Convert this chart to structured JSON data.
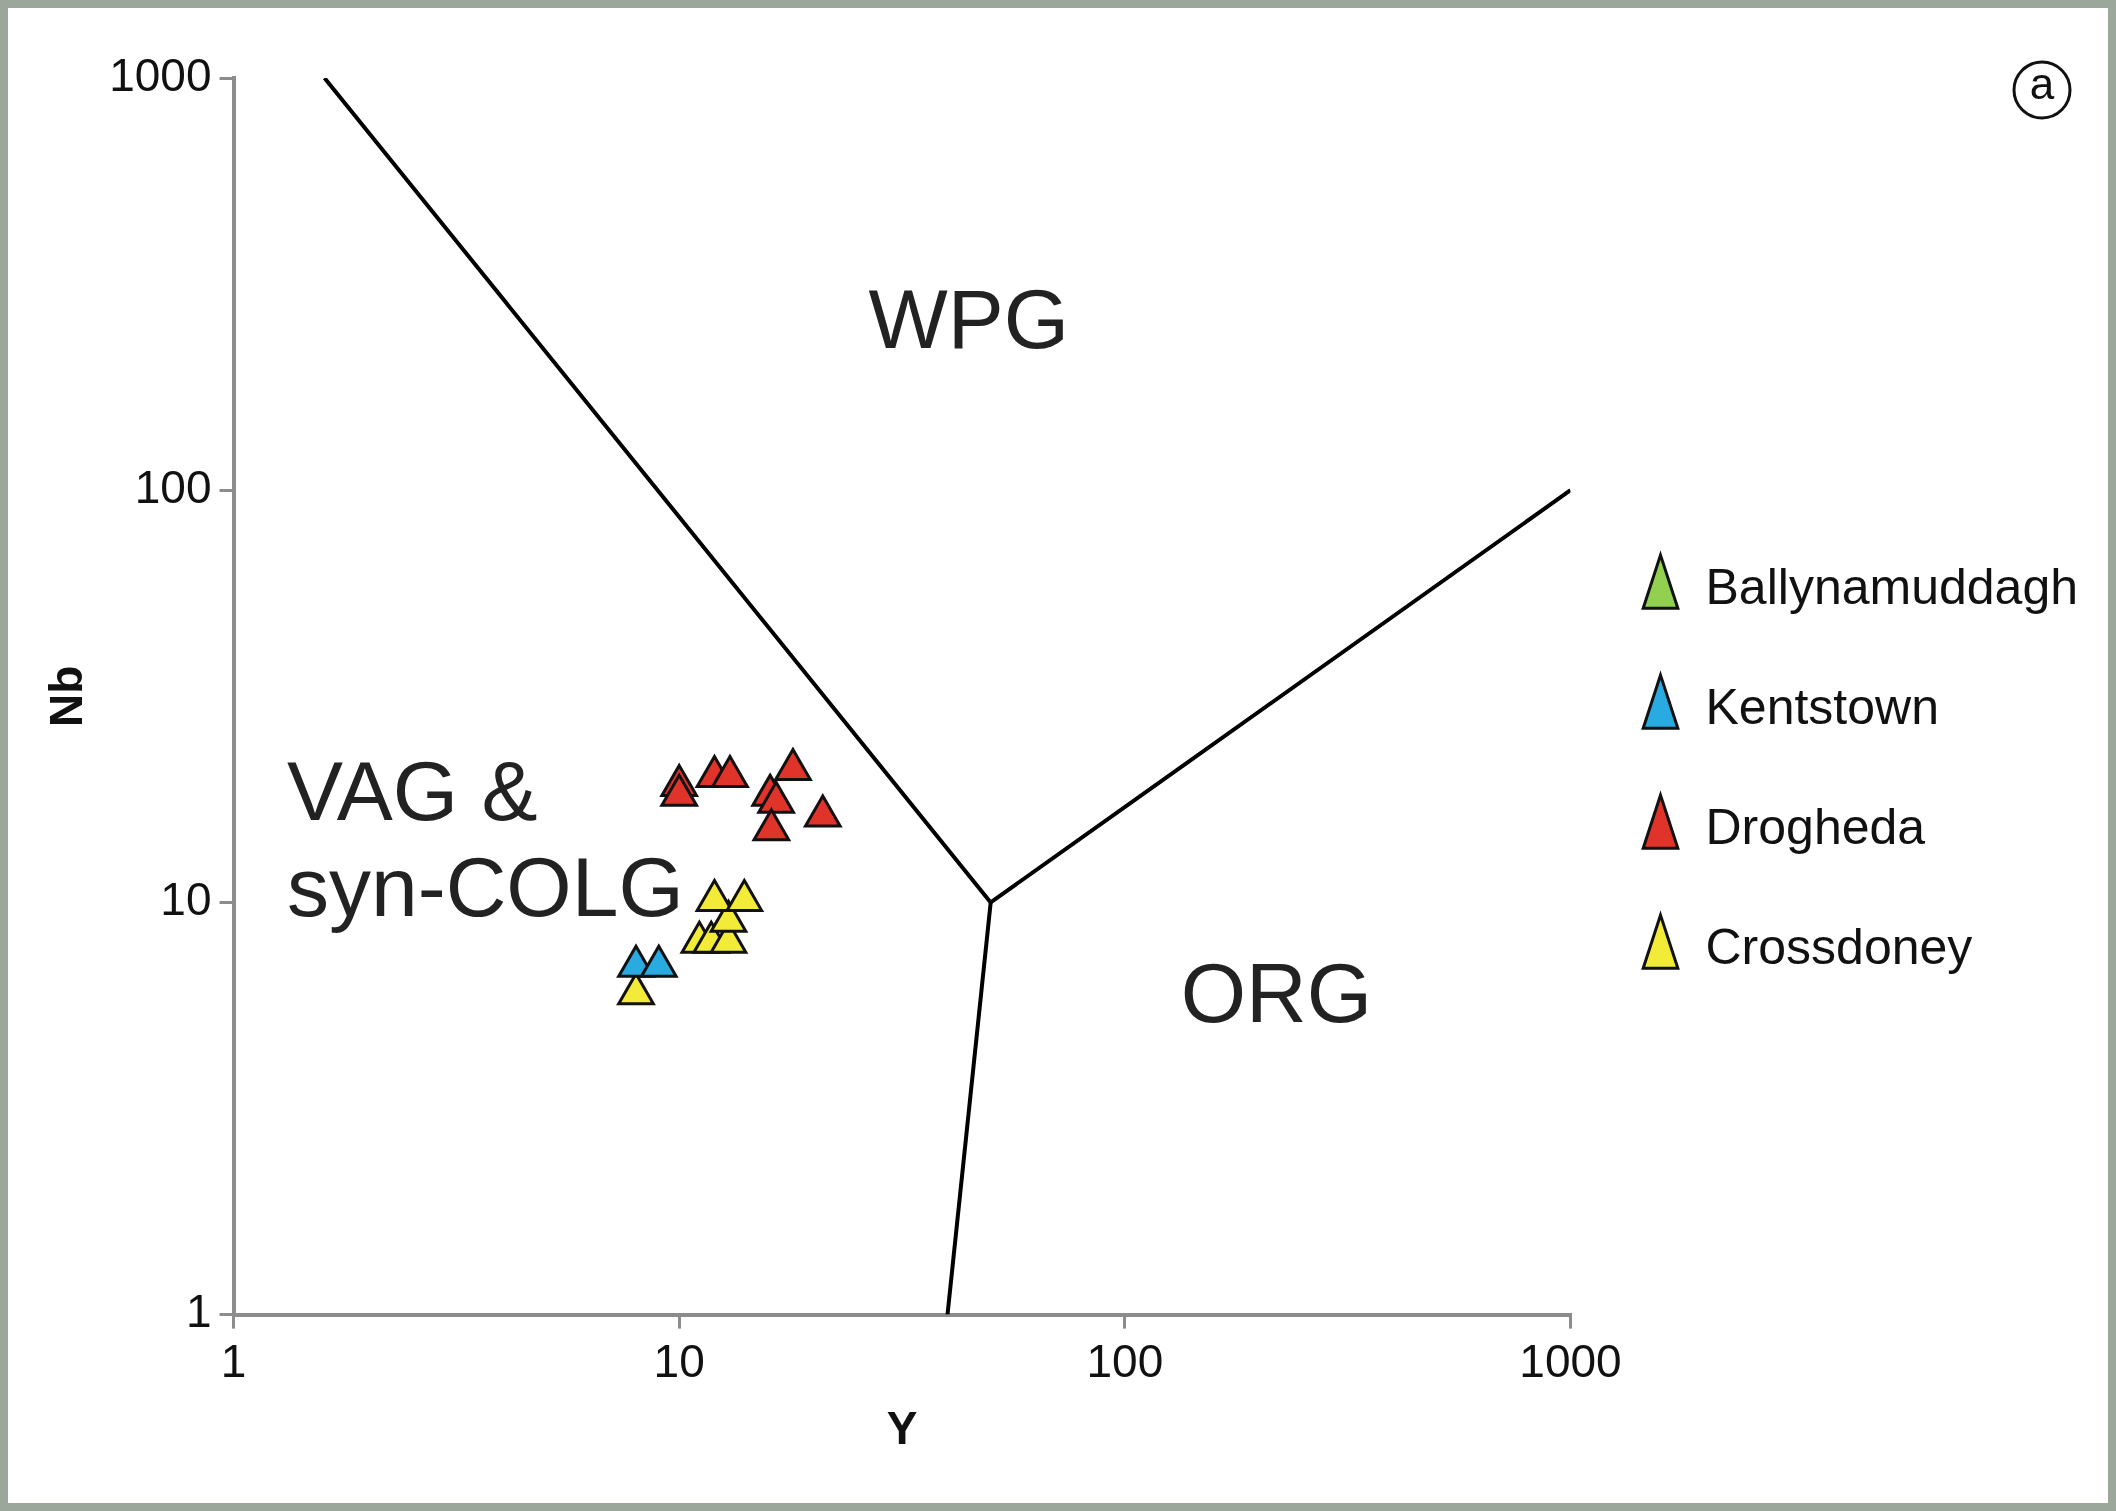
{
  "chart_data": {
    "type": "scatter",
    "xlabel": "Y",
    "ylabel": "Nb",
    "log": "xy",
    "xlim": [
      1,
      1000
    ],
    "ylim": [
      1,
      1000
    ],
    "xticks": [
      1,
      10,
      100,
      1000
    ],
    "yticks": [
      1,
      10,
      100,
      1000
    ],
    "grid": false,
    "legend": "right",
    "marker": "triangle",
    "series": [
      {
        "name": "Ballynamuddagh",
        "color": "#92d050"
      },
      {
        "name": "Kentstown",
        "color": "#29abe2",
        "x": [
          8.0,
          9.0
        ],
        "values": [
          7.0,
          7.0
        ]
      },
      {
        "name": "Drogheda",
        "color": "#e0332a",
        "x": [
          10.0,
          10.0,
          12.0,
          13.0,
          18.0,
          16.0,
          16.5,
          16.1,
          21.0
        ],
        "values": [
          19.2,
          18.2,
          20.2,
          20.2,
          21.0,
          18.2,
          17.5,
          15.0,
          16.2
        ]
      },
      {
        "name": "Crossdoney",
        "color": "#f2ec38",
        "x": [
          11.1,
          11.8,
          12.9,
          12.9,
          12.0,
          14.0,
          8.0
        ],
        "values": [
          8.0,
          8.0,
          8.0,
          9.0,
          10.1,
          10.1,
          6.0
        ]
      },
      {
        "type": "line",
        "marker": "none",
        "color": "#000000",
        "x": [
          1.6,
          50,
          1000
        ],
        "values": [
          1000,
          10,
          100
        ]
      },
      {
        "type": "line",
        "marker": "none",
        "color": "#000000",
        "x": [
          50,
          40
        ],
        "values": [
          10,
          1
        ]
      }
    ],
    "annotations": [
      "WPG",
      "VAG &\nsyn-COLG",
      "ORG",
      "a"
    ]
  }
}
